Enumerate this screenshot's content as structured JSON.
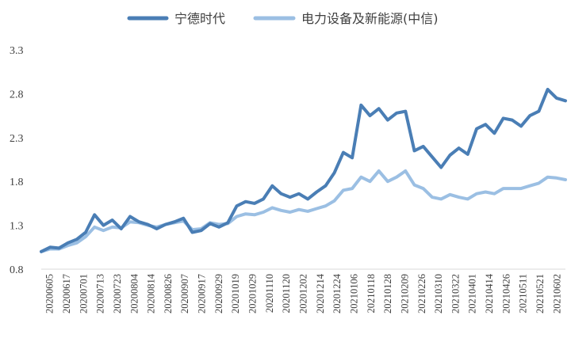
{
  "chart_data": {
    "type": "line",
    "title": "",
    "xlabel": "",
    "ylabel": "",
    "ylim": [
      0.8,
      3.3
    ],
    "y_ticks": [
      "0.8",
      "1.3",
      "1.8",
      "2.3",
      "2.8",
      "3.3"
    ],
    "x_tick_labels": [
      "20200605",
      "20200617",
      "20200701",
      "20200713",
      "20200723",
      "20200804",
      "20200814",
      "20200826",
      "20200907",
      "20200917",
      "20200929",
      "20201019",
      "20201029",
      "20201110",
      "20201120",
      "20201202",
      "20201214",
      "20201224",
      "20210106",
      "20210118",
      "20210128",
      "20210209",
      "20210226",
      "20210310",
      "20210322",
      "20210401",
      "20210414",
      "20210426",
      "20210511",
      "20210521",
      "20210602"
    ],
    "grid": false,
    "legend_position": "top",
    "series": [
      {
        "name": "宁德时代",
        "color": "#4a7eb5",
        "values": [
          1.0,
          1.05,
          1.04,
          1.1,
          1.14,
          1.22,
          1.42,
          1.3,
          1.36,
          1.26,
          1.4,
          1.34,
          1.31,
          1.26,
          1.31,
          1.34,
          1.38,
          1.22,
          1.24,
          1.32,
          1.28,
          1.33,
          1.52,
          1.57,
          1.55,
          1.6,
          1.75,
          1.66,
          1.62,
          1.66,
          1.6,
          1.68,
          1.75,
          1.9,
          2.13,
          2.07,
          2.67,
          2.55,
          2.63,
          2.5,
          2.58,
          2.6,
          2.15,
          2.2,
          2.08,
          1.96,
          2.1,
          2.18,
          2.11,
          2.4,
          2.45,
          2.35,
          2.52,
          2.5,
          2.43,
          2.55,
          2.6,
          2.85,
          2.75,
          2.72
        ]
      },
      {
        "name": "电力设备及新能源(中信)",
        "color": "#9bbfe3",
        "values": [
          1.0,
          1.03,
          1.03,
          1.07,
          1.1,
          1.17,
          1.28,
          1.24,
          1.28,
          1.27,
          1.34,
          1.33,
          1.3,
          1.28,
          1.31,
          1.33,
          1.35,
          1.25,
          1.26,
          1.33,
          1.31,
          1.32,
          1.4,
          1.43,
          1.42,
          1.45,
          1.5,
          1.47,
          1.45,
          1.48,
          1.46,
          1.49,
          1.52,
          1.58,
          1.7,
          1.72,
          1.85,
          1.8,
          1.92,
          1.8,
          1.85,
          1.92,
          1.76,
          1.72,
          1.62,
          1.6,
          1.65,
          1.62,
          1.6,
          1.66,
          1.68,
          1.66,
          1.72,
          1.72,
          1.72,
          1.75,
          1.78,
          1.85,
          1.84,
          1.82
        ]
      }
    ]
  }
}
